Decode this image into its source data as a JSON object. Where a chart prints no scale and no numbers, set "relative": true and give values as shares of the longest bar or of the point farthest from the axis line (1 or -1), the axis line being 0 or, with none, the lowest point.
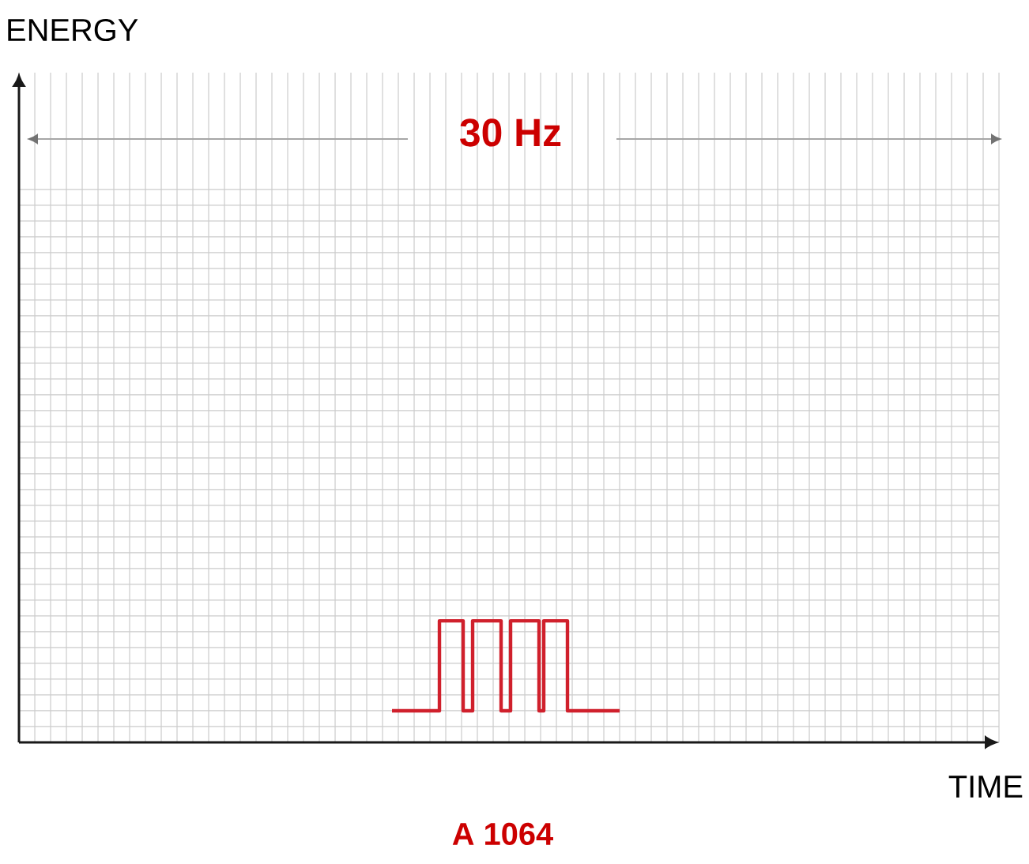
{
  "chart_data": {
    "type": "step",
    "relative": true,
    "annotations": [
      "ENERGY",
      "30 Hz",
      "TIME",
      "A 1064"
    ],
    "categories": [
      null,
      null,
      null,
      null,
      null,
      null,
      null,
      null,
      null,
      null,
      null,
      null,
      null,
      null,
      null,
      null,
      null,
      null,
      null,
      null,
      null,
      null,
      null,
      null,
      null,
      null,
      null,
      null,
      null,
      null,
      null,
      null,
      null,
      null,
      null,
      null,
      null,
      null,
      null,
      null,
      null,
      null,
      null,
      null,
      null,
      null,
      null,
      null,
      null
    ],
    "values": [
      0.26,
      0.26,
      0.26,
      0.26,
      0.26,
      0.26,
      0.26,
      0.26,
      0.26,
      0.26,
      1,
      1,
      1,
      1,
      1,
      0.26,
      0.26,
      1,
      1,
      1,
      1,
      1,
      1,
      0.26,
      0.26,
      1,
      1,
      1,
      1,
      1,
      1,
      0.26,
      1,
      1,
      1,
      1,
      1,
      0.26,
      0.26,
      0.26,
      0.26,
      0.26,
      0.26,
      0.26,
      0.26,
      0.26,
      0.26,
      0.26,
      0.26
    ],
    "color": "#d0202c",
    "grid": true,
    "tick_labels": false
  }
}
